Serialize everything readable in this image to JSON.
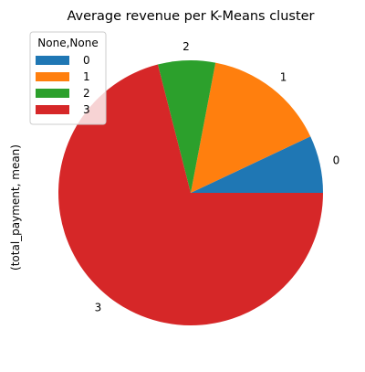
{
  "chart_data": {
    "type": "pie",
    "title": "Average revenue per K-Means cluster",
    "ylabel": "(total_payment, mean)",
    "legend": {
      "title": "None,None",
      "placement": "top-left"
    },
    "slices": [
      {
        "label": "0",
        "value": 7.0,
        "color": "#1f77b4"
      },
      {
        "label": "1",
        "value": 15.0,
        "color": "#ff7f0e"
      },
      {
        "label": "2",
        "value": 7.0,
        "color": "#2ca02c"
      },
      {
        "label": "3",
        "value": 71.0,
        "color": "#d62728"
      }
    ],
    "start_angle_deg": 0,
    "direction": "counterclockwise"
  }
}
